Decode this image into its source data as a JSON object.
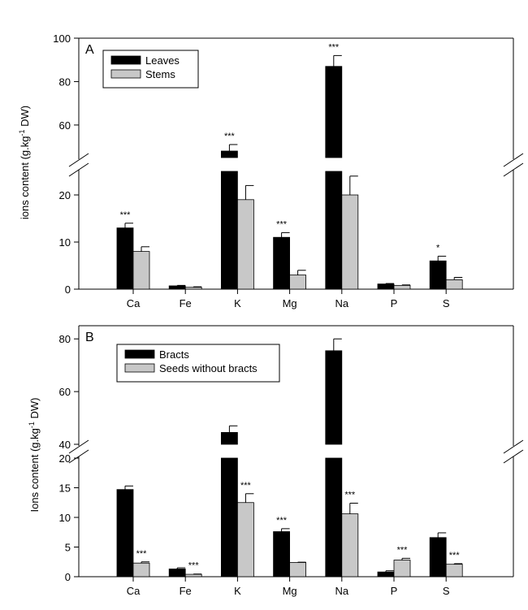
{
  "chart_data": [
    {
      "panel": "A",
      "type": "bar",
      "ylabel": "ions content (g.kg-1 DW)",
      "ylabel_parts": {
        "main": "ions content (g.kg",
        "sup": "-1",
        "tail": " DW)"
      },
      "y_axis": "broken",
      "y_segments": [
        {
          "range": [
            0,
            25
          ],
          "ticks": [
            0,
            10,
            20
          ]
        },
        {
          "range": [
            45,
            100
          ],
          "ticks": [
            60,
            80,
            100
          ]
        }
      ],
      "categories": [
        "Ca",
        "Fe",
        "K",
        "Mg",
        "Na",
        "P",
        "S"
      ],
      "legend": "top-left",
      "series": [
        {
          "name": "Leaves",
          "color": "#000000",
          "values": [
            13,
            0.7,
            48,
            11,
            87,
            1.1,
            6
          ],
          "errors": [
            1,
            0.1,
            3,
            1,
            5,
            0.1,
            1
          ]
        },
        {
          "name": "Stems",
          "color": "#c8c8c8",
          "values": [
            8,
            0.4,
            19,
            3,
            20,
            0.8,
            2
          ],
          "errors": [
            1,
            0.1,
            3,
            1,
            4,
            0.1,
            0.5
          ]
        }
      ],
      "significance": [
        "***",
        "",
        "***",
        "***",
        "***",
        "",
        "*"
      ]
    },
    {
      "panel": "B",
      "type": "bar",
      "ylabel": "Ions content (g.kg-1 DW)",
      "ylabel_parts": {
        "main": "Ions content (g.kg",
        "sup": "-1",
        "tail": " DW)"
      },
      "y_axis": "broken",
      "y_segments": [
        {
          "range": [
            0,
            20
          ],
          "ticks": [
            0,
            5,
            10,
            15,
            20
          ]
        },
        {
          "range": [
            40,
            85
          ],
          "ticks": [
            40,
            60,
            80
          ]
        }
      ],
      "categories": [
        "Ca",
        "Fe",
        "K",
        "Mg",
        "Na",
        "P",
        "S"
      ],
      "legend": "top-left",
      "series": [
        {
          "name": "Bracts",
          "color": "#000000",
          "values": [
            14.7,
            1.3,
            44.5,
            7.6,
            75.5,
            0.8,
            6.6
          ],
          "errors": [
            0.6,
            0.2,
            2.5,
            0.5,
            4.5,
            0.2,
            0.8
          ]
        },
        {
          "name": "Seeds without bracts",
          "color": "#c8c8c8",
          "values": [
            2.3,
            0.4,
            12.5,
            2.4,
            10.6,
            2.8,
            2.1
          ],
          "errors": [
            0.2,
            0.05,
            1.5,
            0.05,
            1.8,
            0.3,
            0.1
          ]
        }
      ],
      "significance": [
        "***",
        "***",
        "***",
        "***",
        "***",
        "***",
        "***"
      ],
      "significance_on_series": [
        1,
        1,
        1,
        0,
        1,
        1,
        1
      ]
    }
  ]
}
